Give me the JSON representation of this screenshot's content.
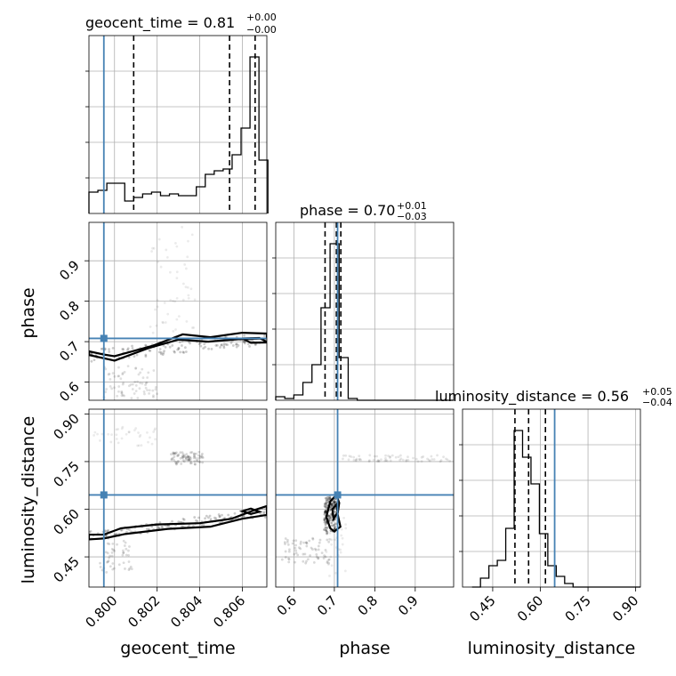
{
  "chart_data": {
    "type": "corner",
    "parameters": [
      "geocent_time",
      "phase",
      "luminosity_distance"
    ],
    "ranges": {
      "geocent_time": [
        0.7988,
        0.80715
      ],
      "phase": [
        0.555,
        0.995
      ],
      "luminosity_distance": [
        0.355,
        0.915
      ]
    },
    "ticks": {
      "geocent_time": [
        "0.800",
        "0.802",
        "0.804",
        "0.806"
      ],
      "phase": [
        "0.6",
        "0.7",
        "0.8",
        "0.9"
      ],
      "luminosity_distance": [
        "0.45",
        "0.60",
        "0.75",
        "0.90"
      ]
    },
    "truths": {
      "geocent_time": 0.7995,
      "phase": 0.708,
      "luminosity_distance": 0.645
    },
    "titles": [
      {
        "param": "geocent_time",
        "label": "geocent_time = 0.81",
        "sup": "+0.00",
        "sub": "−0.00"
      },
      {
        "param": "phase",
        "label": "phase = 0.70",
        "sup": "+0.01",
        "sub": "−0.03"
      },
      {
        "param": "luminosity_distance",
        "label": "luminosity_distance = 0.56",
        "sup": "+0.05",
        "sub": "−0.04"
      }
    ],
    "quantiles": {
      "geocent_time": [
        0.8009,
        0.8054,
        0.8066
      ],
      "phase": [
        0.677,
        0.705,
        0.716
      ],
      "luminosity_distance": [
        0.52,
        0.563,
        0.616
      ]
    },
    "histograms": {
      "geocent_time": {
        "edges": [
          0.7988,
          0.79922,
          0.79964,
          0.80006,
          0.80048,
          0.8009,
          0.80132,
          0.80174,
          0.80216,
          0.80258,
          0.803,
          0.80342,
          0.80384,
          0.80426,
          0.80468,
          0.8051,
          0.80552,
          0.80594,
          0.80636,
          0.80678,
          0.8072
        ],
        "counts": [
          0.12,
          0.13,
          0.17,
          0.17,
          0.07,
          0.09,
          0.11,
          0.12,
          0.1,
          0.11,
          0.1,
          0.1,
          0.15,
          0.22,
          0.24,
          0.25,
          0.33,
          0.48,
          0.88,
          0.3
        ]
      },
      "phase": {
        "edges": [
          0.555,
          0.5774,
          0.5998,
          0.6222,
          0.6446,
          0.667,
          0.6894,
          0.7118,
          0.7342,
          0.7566,
          0.779,
          0.8014,
          0.8238,
          0.8462,
          0.8686,
          0.891,
          0.9134,
          0.9358,
          0.9582,
          0.9806,
          0.995
        ],
        "counts": [
          0.02,
          0.01,
          0.03,
          0.1,
          0.2,
          0.52,
          0.88,
          0.24,
          0.01,
          0.0,
          0.0,
          0.0,
          0.0,
          0.0,
          0.0,
          0.0,
          0.0,
          0.0,
          0.0,
          0.0
        ]
      },
      "luminosity_distance": {
        "edges": [
          0.385,
          0.4115,
          0.438,
          0.4645,
          0.491,
          0.5175,
          0.544,
          0.5705,
          0.597,
          0.6235,
          0.65,
          0.6765,
          0.703,
          0.7295,
          0.756,
          0.7825,
          0.809,
          0.8355,
          0.862,
          0.8885,
          0.915
        ],
        "counts": [
          0.0,
          0.05,
          0.12,
          0.15,
          0.33,
          0.88,
          0.73,
          0.58,
          0.3,
          0.12,
          0.06,
          0.02,
          0.0,
          0.0,
          0.0,
          0.0,
          0.0,
          0.0,
          0.0,
          0.0
        ]
      }
    },
    "axis_labels": {
      "geocent_time": "geocent_time",
      "phase": "phase",
      "luminosity_distance": "luminosity_distance"
    },
    "grid": true
  }
}
